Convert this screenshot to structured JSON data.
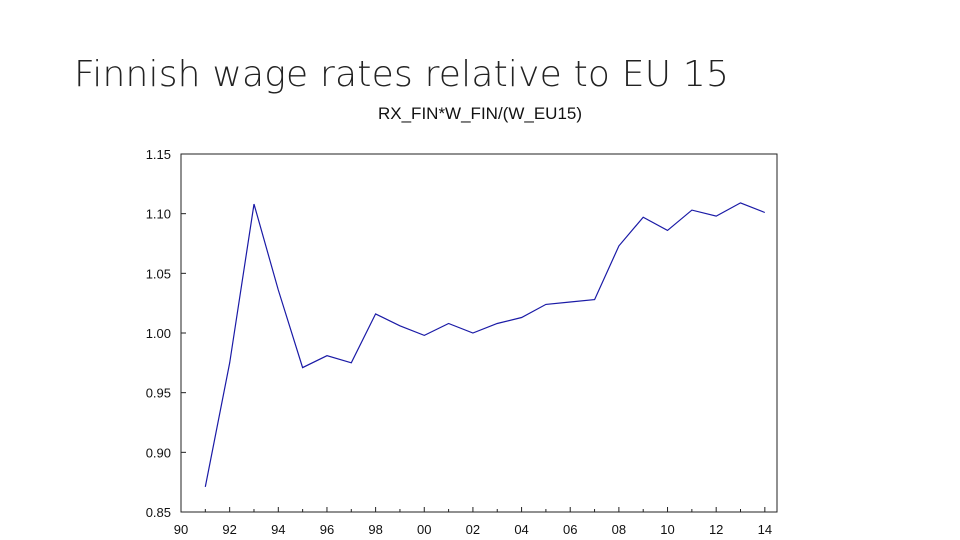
{
  "slide": {
    "title": "Finnish wage rates relative to EU 15"
  },
  "chart_data": {
    "type": "line",
    "title": "RX_FIN*W_FIN/(W_EU15)",
    "xlabel": "",
    "ylabel": "",
    "grid": false,
    "legend": "none",
    "line_color": "#1a1aa6",
    "xlim": [
      1990,
      2014.5
    ],
    "ylim": [
      0.85,
      1.15
    ],
    "x_ticks": [
      1990,
      1992,
      1994,
      1996,
      1998,
      2000,
      2002,
      2004,
      2006,
      2008,
      2010,
      2012,
      2014
    ],
    "x_tick_labels": [
      "90",
      "92",
      "94",
      "96",
      "98",
      "00",
      "02",
      "04",
      "06",
      "08",
      "10",
      "12",
      "14"
    ],
    "y_ticks": [
      0.85,
      0.9,
      0.95,
      1.0,
      1.05,
      1.1,
      1.15
    ],
    "y_tick_labels": [
      "0.85",
      "0.90",
      "0.95",
      "1.00",
      "1.05",
      "1.10",
      "1.15"
    ],
    "series": [
      {
        "x": [
          1991,
          1992,
          1993,
          1994,
          1995,
          1996,
          1997,
          1998,
          1999,
          2000,
          2001,
          2002,
          2003,
          2004,
          2005,
          2006,
          2007,
          2008,
          2009,
          2010,
          2011,
          2012,
          2013,
          2014
        ],
        "values": [
          0.871,
          0.975,
          1.108,
          1.036,
          0.971,
          0.981,
          0.975,
          1.016,
          1.006,
          0.998,
          1.008,
          1.0,
          1.008,
          1.013,
          1.024,
          1.026,
          1.028,
          1.073,
          1.097,
          1.086,
          1.103,
          1.098,
          1.109,
          1.101
        ]
      }
    ]
  }
}
